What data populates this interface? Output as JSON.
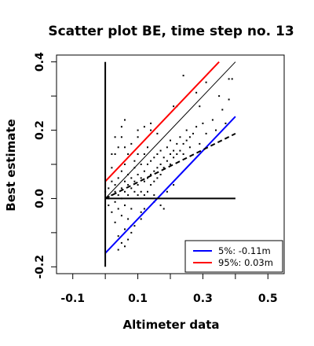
{
  "chart_data": {
    "type": "scatter",
    "title": "Scatter plot BE, time step no. 13",
    "xlabel": "Altimeter data",
    "ylabel": "Best estimate",
    "xlim": [
      -0.15,
      0.55
    ],
    "ylim": [
      -0.22,
      0.42
    ],
    "x_ticks": [
      {
        "value": -0.1,
        "label": "-0.1"
      },
      {
        "value": 0.1,
        "label": "0.1"
      },
      {
        "value": 0.3,
        "label": "0.3"
      },
      {
        "value": 0.5,
        "label": "0.5"
      }
    ],
    "x_minor_ticks": [
      0.0,
      0.2,
      0.4
    ],
    "y_ticks": [
      {
        "value": -0.2,
        "label": "-0.2"
      },
      {
        "value": 0.0,
        "label": "0.0"
      },
      {
        "value": 0.2,
        "label": "0.2"
      },
      {
        "value": 0.4,
        "label": "0.4"
      }
    ],
    "y_minor_ticks": [
      -0.1,
      0.1,
      0.3
    ],
    "grid": false,
    "legend": {
      "position": "bottom-right",
      "entries": [
        {
          "label": "5%: -0.11m",
          "color": "#0000ff"
        },
        {
          "label": "95%:  0.03m",
          "color": "#ff0000"
        }
      ]
    },
    "lines": [
      {
        "role": "one-to-one",
        "color": "#000000",
        "dash": "solid",
        "width": 1,
        "x": [
          0.0,
          0.4
        ],
        "y": [
          0.0,
          0.4
        ]
      },
      {
        "role": "upper-bound",
        "color": "#ff0000",
        "dash": "solid",
        "width": 2,
        "x": [
          0.0,
          0.35
        ],
        "y": [
          0.05,
          0.4
        ]
      },
      {
        "role": "lower-bound",
        "color": "#0000ff",
        "dash": "solid",
        "width": 2,
        "x": [
          0.0,
          0.4
        ],
        "y": [
          -0.16,
          0.24
        ]
      },
      {
        "role": "regression",
        "color": "#000000",
        "dash": "dashed",
        "width": 2,
        "x": [
          0.0,
          0.4
        ],
        "y": [
          0.0,
          0.19
        ]
      },
      {
        "role": "vertical-axis-line",
        "color": "#000000",
        "dash": "solid",
        "width": 2,
        "x": [
          0.0,
          0.0
        ],
        "y": [
          -0.2,
          0.4
        ]
      },
      {
        "role": "horizontal-zero-line",
        "color": "#000000",
        "dash": "solid",
        "width": 2,
        "x": [
          0.0,
          0.4
        ],
        "y": [
          0.0,
          0.0
        ]
      }
    ],
    "points": [
      [
        0.0,
        0.02
      ],
      [
        0.01,
        0.0
      ],
      [
        0.01,
        0.03
      ],
      [
        0.01,
        -0.02
      ],
      [
        0.02,
        0.01
      ],
      [
        0.02,
        0.05
      ],
      [
        0.02,
        -0.04
      ],
      [
        0.02,
        0.09
      ],
      [
        0.03,
        0.02
      ],
      [
        0.03,
        -0.01
      ],
      [
        0.03,
        0.04
      ],
      [
        0.03,
        0.13
      ],
      [
        0.03,
        -0.07
      ],
      [
        0.04,
        0.01
      ],
      [
        0.04,
        0.06
      ],
      [
        0.04,
        -0.03
      ],
      [
        0.04,
        0.15
      ],
      [
        0.04,
        -0.11
      ],
      [
        0.05,
        0.03
      ],
      [
        0.05,
        0.0
      ],
      [
        0.05,
        0.08
      ],
      [
        0.05,
        -0.05
      ],
      [
        0.05,
        0.18
      ],
      [
        0.06,
        0.02
      ],
      [
        0.06,
        0.05
      ],
      [
        0.06,
        -0.02
      ],
      [
        0.06,
        0.1
      ],
      [
        0.06,
        -0.09
      ],
      [
        0.06,
        0.23
      ],
      [
        0.07,
        0.04
      ],
      [
        0.07,
        0.01
      ],
      [
        0.07,
        0.07
      ],
      [
        0.07,
        -0.06
      ],
      [
        0.07,
        0.13
      ],
      [
        0.08,
        0.03
      ],
      [
        0.08,
        0.06
      ],
      [
        0.08,
        -0.03
      ],
      [
        0.08,
        0.16
      ],
      [
        0.08,
        -0.08
      ],
      [
        0.09,
        0.05
      ],
      [
        0.09,
        0.02
      ],
      [
        0.09,
        0.09
      ],
      [
        0.09,
        0.11
      ],
      [
        0.1,
        0.04
      ],
      [
        0.1,
        0.07
      ],
      [
        0.1,
        0.01
      ],
      [
        0.1,
        0.13
      ],
      [
        0.1,
        0.18
      ],
      [
        0.11,
        0.06
      ],
      [
        0.11,
        0.02
      ],
      [
        0.11,
        0.1
      ],
      [
        0.11,
        -0.04
      ],
      [
        0.12,
        0.05
      ],
      [
        0.12,
        0.08
      ],
      [
        0.12,
        0.13
      ],
      [
        0.12,
        0.01
      ],
      [
        0.13,
        0.06
      ],
      [
        0.13,
        0.1
      ],
      [
        0.13,
        0.02
      ],
      [
        0.13,
        0.15
      ],
      [
        0.14,
        0.07
      ],
      [
        0.14,
        0.11
      ],
      [
        0.14,
        0.04
      ],
      [
        0.15,
        0.08
      ],
      [
        0.15,
        0.12
      ],
      [
        0.15,
        0.05
      ],
      [
        0.15,
        -0.01
      ],
      [
        0.16,
        0.09
      ],
      [
        0.16,
        0.13
      ],
      [
        0.16,
        0.06
      ],
      [
        0.17,
        0.1
      ],
      [
        0.17,
        0.14
      ],
      [
        0.17,
        0.07
      ],
      [
        0.18,
        0.09
      ],
      [
        0.18,
        0.12
      ],
      [
        0.18,
        -0.03
      ],
      [
        0.19,
        0.11
      ],
      [
        0.19,
        0.15
      ],
      [
        0.2,
        0.1
      ],
      [
        0.2,
        0.13
      ],
      [
        0.2,
        0.17
      ],
      [
        0.21,
        0.12
      ],
      [
        0.21,
        0.14
      ],
      [
        0.22,
        0.13
      ],
      [
        0.22,
        0.16
      ],
      [
        0.23,
        0.14
      ],
      [
        0.23,
        0.18
      ],
      [
        0.24,
        0.16
      ],
      [
        0.24,
        0.13
      ],
      [
        0.25,
        0.17
      ],
      [
        0.25,
        0.2
      ],
      [
        0.26,
        0.18
      ],
      [
        0.26,
        0.15
      ],
      [
        0.27,
        0.19
      ],
      [
        0.28,
        0.21
      ],
      [
        0.29,
        0.16
      ],
      [
        0.3,
        0.22
      ],
      [
        0.31,
        0.19
      ],
      [
        0.33,
        0.23
      ],
      [
        0.34,
        0.2
      ],
      [
        0.36,
        0.26
      ],
      [
        0.37,
        0.22
      ],
      [
        0.38,
        0.29
      ],
      [
        0.31,
        0.34
      ],
      [
        0.38,
        0.35
      ],
      [
        0.39,
        0.35
      ],
      [
        0.28,
        0.31
      ],
      [
        0.21,
        0.27
      ],
      [
        0.24,
        0.36
      ],
      [
        0.14,
        0.22
      ],
      [
        0.16,
        0.19
      ],
      [
        0.22,
        0.27
      ],
      [
        0.29,
        0.27
      ],
      [
        0.35,
        0.3
      ],
      [
        0.19,
        0.02
      ],
      [
        0.21,
        0.04
      ],
      [
        0.17,
        -0.02
      ],
      [
        0.15,
        0.01
      ],
      [
        0.11,
        -0.06
      ],
      [
        0.09,
        -0.08
      ],
      [
        0.08,
        -0.1
      ],
      [
        0.07,
        -0.12
      ],
      [
        0.12,
        -0.03
      ],
      [
        0.14,
        0.2
      ],
      [
        0.06,
        0.15
      ],
      [
        0.05,
        0.21
      ],
      [
        0.03,
        0.18
      ],
      [
        0.02,
        0.13
      ],
      [
        0.1,
        0.2
      ],
      [
        0.12,
        0.21
      ],
      [
        0.06,
        -0.14
      ],
      [
        0.05,
        -0.13
      ],
      [
        0.04,
        -0.15
      ]
    ]
  }
}
